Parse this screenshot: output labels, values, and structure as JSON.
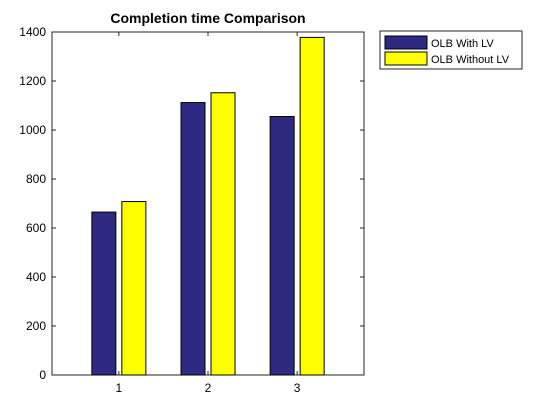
{
  "chart_data": {
    "type": "bar",
    "title": "Completion time Comparison",
    "xlabel": "",
    "ylabel": "",
    "categories": [
      "1",
      "2",
      "3"
    ],
    "series": [
      {
        "name": "OLB With LV",
        "values": [
          665,
          1112,
          1055
        ],
        "color": "#2e2a82"
      },
      {
        "name": "OLB Without LV",
        "values": [
          708,
          1152,
          1378
        ],
        "color": "#ffff00"
      }
    ],
    "ylim": [
      0,
      1400
    ],
    "yticks": [
      0,
      200,
      400,
      600,
      800,
      1000,
      1200,
      1400
    ],
    "grid": false,
    "legend": "outside-top-right"
  }
}
